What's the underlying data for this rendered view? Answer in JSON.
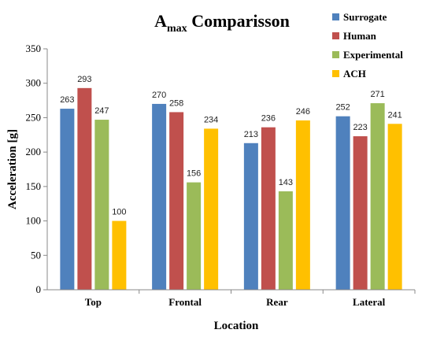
{
  "chart_data": {
    "type": "bar",
    "title_main": "A",
    "title_sub": "max",
    "title_rest": " Comparisson",
    "xlabel": "Location",
    "ylabel": "Acceleration [g]",
    "ylim": [
      0,
      350
    ],
    "yticks": [
      0,
      50,
      100,
      150,
      200,
      250,
      300,
      350
    ],
    "grid": false,
    "legend_position": "top-right",
    "categories": [
      "Top",
      "Frontal",
      "Rear",
      "Lateral"
    ],
    "series": [
      {
        "name": "Surrogate",
        "color": "#4F81BD",
        "values": [
          263,
          270,
          213,
          252
        ]
      },
      {
        "name": "Human",
        "color": "#C0504D",
        "values": [
          293,
          258,
          236,
          223
        ]
      },
      {
        "name": "Experimental",
        "color": "#9BBB59",
        "values": [
          247,
          156,
          143,
          271
        ]
      },
      {
        "name": "ACH",
        "color": "#FFC000",
        "values": [
          100,
          234,
          246,
          241
        ]
      }
    ]
  }
}
